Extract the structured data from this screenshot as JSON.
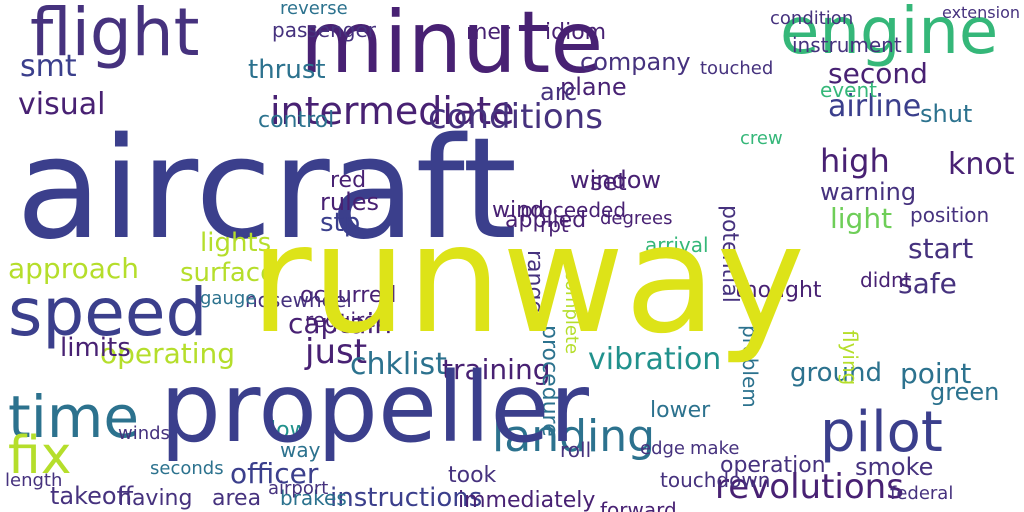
{
  "words": {
    "aircraft": "aircraft",
    "runway": "runway",
    "propeller": "propeller",
    "minute": "minute",
    "flight": "flight",
    "engine": "engine",
    "speed": "speed",
    "time": "time",
    "fix": "fix",
    "pilot": "pilot",
    "intermediate": "intermediate",
    "landing": "landing",
    "revolutions": "revolutions",
    "conditions": "conditions",
    "airline": "airline",
    "second": "second",
    "approach": "approach",
    "lights": "lights",
    "captain": "captain",
    "officer": "officer",
    "instructions": "instructions",
    "takeoff": "takeoff",
    "visual": "visual",
    "smt": "smt",
    "thrust": "thrust",
    "vibration": "vibration",
    "window": "window",
    "just": "just",
    "operating": "operating",
    "surface": "surface",
    "high": "high",
    "warning": "warning",
    "light": "light",
    "knot": "knot",
    "start": "start",
    "safe": "safe",
    "point": "point",
    "green": "green",
    "ground": "ground",
    "chklist": "chklist",
    "training": "training",
    "took": "took",
    "smoke": "smoke",
    "operation": "operation",
    "forward": "forward",
    "immediately": "immediately",
    "having": "having",
    "area": "area",
    "brakes": "brakes",
    "occurred": "occurred",
    "required": "required",
    "red": "red",
    "rules": "rules",
    "stp": "stp",
    "applied": "applied",
    "wind": "wind",
    "control": "control",
    "limits": "limits",
    "airport": "airport",
    "low": "low",
    "way": "way",
    "set": "set",
    "plane": "plane",
    "company": "company",
    "mer": "mer",
    "idiom": "idiom",
    "passenger": "passenger",
    "reverse": "reverse",
    "arc": "arc",
    "proceeded": "proceeded",
    "procedure": "procedure",
    "shut": "shut",
    "instrument": "instrument",
    "touched": "touched",
    "event": "event",
    "position": "position",
    "potential": "potential",
    "nosewheel": "nosewheel",
    "gauge": "gauge",
    "length": "length",
    "federal": "federal",
    "lower": "lower",
    "flying": "flying",
    "problem": "problem",
    "roll": "roll",
    "edge": "edge",
    "make": "make",
    "range": "range",
    "didnt": "didnt",
    "thought": "thought",
    "rpt": "rpt",
    "arrival": "arrival",
    "degrees": "degrees",
    "touchdown": "touchdown",
    "crew": "crew",
    "condition": "condition",
    "extension": "extension",
    "seconds": "seconds",
    "winds": "winds",
    "complete": "complete"
  },
  "colors": {
    "navy": "#3b3f8c",
    "indigo": "#46327e",
    "purple": "#482173",
    "teal": "#2c728e",
    "cyan": "#21918c",
    "green": "#35b779",
    "lime": "#6ece58",
    "yellowgreen": "#b5de2b",
    "yellow": "#dde318",
    "bg": "#ffffff"
  }
}
